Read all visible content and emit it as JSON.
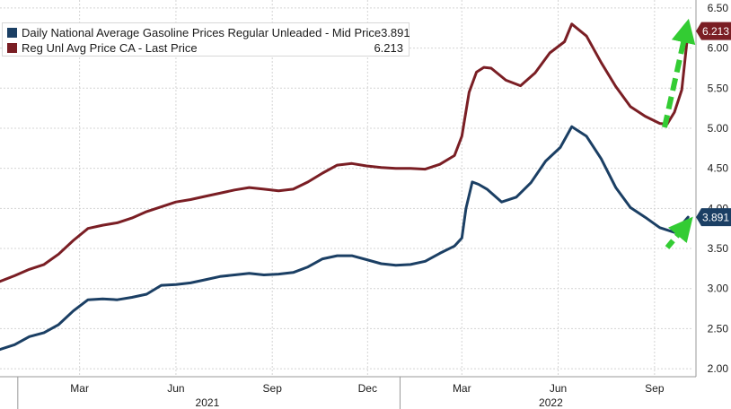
{
  "chart_data": {
    "type": "line",
    "x_domain": [
      "2020-12-15",
      "2022-10-08"
    ],
    "ylim": [
      1.9,
      6.6
    ],
    "y_ticks": [
      "2.00",
      "2.50",
      "3.00",
      "3.50",
      "4.00",
      "4.50",
      "5.00",
      "5.50",
      "6.00",
      "6.50"
    ],
    "month_ticks": [
      {
        "label": "Mar",
        "date": "2021-03-01"
      },
      {
        "label": "Jun",
        "date": "2021-06-01"
      },
      {
        "label": "Sep",
        "date": "2021-09-01"
      },
      {
        "label": "Dec",
        "date": "2021-12-01"
      },
      {
        "label": "Mar",
        "date": "2022-03-01"
      },
      {
        "label": "Jun",
        "date": "2022-06-01"
      },
      {
        "label": "Sep",
        "date": "2022-09-01"
      }
    ],
    "year_labels": [
      {
        "label": "2021",
        "date": "2021-07-01"
      },
      {
        "label": "2022",
        "date": "2022-05-25"
      }
    ],
    "year_separators": [
      "2021-01-01",
      "2022-01-01"
    ],
    "grid": true,
    "legend_position": "top-left",
    "series": [
      {
        "name": "Daily National Average Gasoline Prices Regular Unleaded - Mid Price",
        "legend_value": "3.891",
        "last_label": "3.891",
        "color": "#1b3f64",
        "points": [
          [
            "2020-12-15",
            2.24
          ],
          [
            "2020-12-29",
            2.3
          ],
          [
            "2021-01-12",
            2.4
          ],
          [
            "2021-01-26",
            2.45
          ],
          [
            "2021-02-09",
            2.55
          ],
          [
            "2021-02-23",
            2.72
          ],
          [
            "2021-03-09",
            2.86
          ],
          [
            "2021-03-23",
            2.87
          ],
          [
            "2021-04-06",
            2.86
          ],
          [
            "2021-04-20",
            2.89
          ],
          [
            "2021-05-04",
            2.93
          ],
          [
            "2021-05-18",
            3.04
          ],
          [
            "2021-06-01",
            3.05
          ],
          [
            "2021-06-15",
            3.07
          ],
          [
            "2021-06-29",
            3.11
          ],
          [
            "2021-07-13",
            3.15
          ],
          [
            "2021-07-27",
            3.17
          ],
          [
            "2021-08-10",
            3.19
          ],
          [
            "2021-08-24",
            3.17
          ],
          [
            "2021-09-07",
            3.18
          ],
          [
            "2021-09-21",
            3.2
          ],
          [
            "2021-10-05",
            3.27
          ],
          [
            "2021-10-19",
            3.37
          ],
          [
            "2021-11-02",
            3.41
          ],
          [
            "2021-11-16",
            3.41
          ],
          [
            "2021-11-30",
            3.36
          ],
          [
            "2021-12-14",
            3.31
          ],
          [
            "2021-12-28",
            3.29
          ],
          [
            "2022-01-11",
            3.3
          ],
          [
            "2022-01-25",
            3.34
          ],
          [
            "2022-02-08",
            3.44
          ],
          [
            "2022-02-22",
            3.53
          ],
          [
            "2022-03-01",
            3.63
          ],
          [
            "2022-03-05",
            4.0
          ],
          [
            "2022-03-11",
            4.33
          ],
          [
            "2022-03-17",
            4.3
          ],
          [
            "2022-03-25",
            4.24
          ],
          [
            "2022-04-08",
            4.08
          ],
          [
            "2022-04-22",
            4.14
          ],
          [
            "2022-05-06",
            4.32
          ],
          [
            "2022-05-20",
            4.59
          ],
          [
            "2022-06-03",
            4.76
          ],
          [
            "2022-06-14",
            5.02
          ],
          [
            "2022-06-28",
            4.9
          ],
          [
            "2022-07-12",
            4.62
          ],
          [
            "2022-07-26",
            4.26
          ],
          [
            "2022-08-09",
            4.01
          ],
          [
            "2022-08-23",
            3.89
          ],
          [
            "2022-09-06",
            3.76
          ],
          [
            "2022-09-20",
            3.7
          ],
          [
            "2022-09-27",
            3.8
          ],
          [
            "2022-10-03",
            3.891
          ]
        ]
      },
      {
        "name": "Reg Unl Avg Price CA - Last Price",
        "legend_value": "6.213",
        "last_label": "6.213",
        "color": "#7a1e24",
        "points": [
          [
            "2020-12-15",
            3.09
          ],
          [
            "2020-12-29",
            3.16
          ],
          [
            "2021-01-12",
            3.24
          ],
          [
            "2021-01-26",
            3.3
          ],
          [
            "2021-02-09",
            3.43
          ],
          [
            "2021-02-23",
            3.6
          ],
          [
            "2021-03-09",
            3.75
          ],
          [
            "2021-03-23",
            3.79
          ],
          [
            "2021-04-06",
            3.82
          ],
          [
            "2021-04-20",
            3.88
          ],
          [
            "2021-05-04",
            3.96
          ],
          [
            "2021-05-18",
            4.02
          ],
          [
            "2021-06-01",
            4.08
          ],
          [
            "2021-06-15",
            4.11
          ],
          [
            "2021-06-29",
            4.15
          ],
          [
            "2021-07-13",
            4.19
          ],
          [
            "2021-07-27",
            4.23
          ],
          [
            "2021-08-10",
            4.26
          ],
          [
            "2021-08-24",
            4.24
          ],
          [
            "2021-09-07",
            4.22
          ],
          [
            "2021-09-21",
            4.24
          ],
          [
            "2021-10-05",
            4.33
          ],
          [
            "2021-10-19",
            4.44
          ],
          [
            "2021-11-02",
            4.54
          ],
          [
            "2021-11-16",
            4.56
          ],
          [
            "2021-11-30",
            4.53
          ],
          [
            "2021-12-14",
            4.51
          ],
          [
            "2021-12-28",
            4.5
          ],
          [
            "2022-01-11",
            4.5
          ],
          [
            "2022-01-25",
            4.49
          ],
          [
            "2022-02-08",
            4.55
          ],
          [
            "2022-02-22",
            4.66
          ],
          [
            "2022-03-01",
            4.9
          ],
          [
            "2022-03-08",
            5.45
          ],
          [
            "2022-03-15",
            5.7
          ],
          [
            "2022-03-22",
            5.76
          ],
          [
            "2022-03-29",
            5.75
          ],
          [
            "2022-04-12",
            5.6
          ],
          [
            "2022-04-26",
            5.53
          ],
          [
            "2022-05-10",
            5.69
          ],
          [
            "2022-05-24",
            5.94
          ],
          [
            "2022-06-07",
            6.08
          ],
          [
            "2022-06-14",
            6.3
          ],
          [
            "2022-06-28",
            6.15
          ],
          [
            "2022-07-12",
            5.82
          ],
          [
            "2022-07-26",
            5.52
          ],
          [
            "2022-08-09",
            5.27
          ],
          [
            "2022-08-23",
            5.15
          ],
          [
            "2022-09-06",
            5.06
          ],
          [
            "2022-09-13",
            5.05
          ],
          [
            "2022-09-20",
            5.2
          ],
          [
            "2022-09-27",
            5.48
          ],
          [
            "2022-10-03",
            6.213
          ]
        ]
      }
    ]
  },
  "annotations": {
    "arrow_color": "#33cc33"
  }
}
